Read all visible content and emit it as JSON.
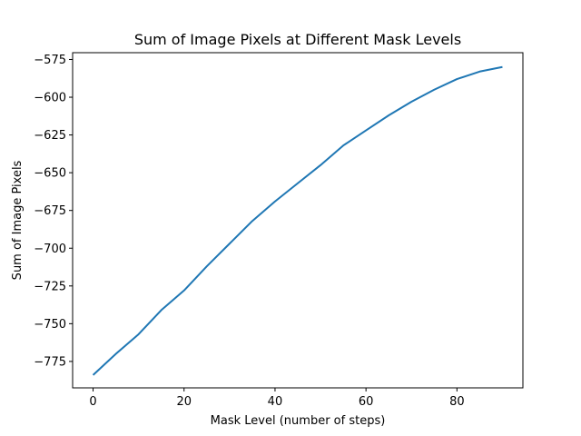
{
  "chart_data": {
    "type": "line",
    "title": "Sum of Image Pixels at Different Mask Levels",
    "xlabel": "Mask Level (number of steps)",
    "ylabel": "Sum of Image Pixels",
    "xlim": [
      -4.5,
      94.5
    ],
    "ylim": [
      -792.5,
      -570.5
    ],
    "x_ticks": [
      0,
      20,
      40,
      60,
      80
    ],
    "x_tick_labels": [
      "0",
      "20",
      "40",
      "60",
      "80"
    ],
    "y_ticks": [
      -575,
      -600,
      -625,
      -650,
      -675,
      -700,
      -725,
      -750,
      -775
    ],
    "y_tick_labels": [
      "−575",
      "−600",
      "−625",
      "−650",
      "−675",
      "−700",
      "−725",
      "−750",
      "−775"
    ],
    "grid": false,
    "series": [
      {
        "color": "#1f77b4",
        "x": [
          0,
          5,
          10,
          15,
          20,
          25,
          30,
          35,
          40,
          45,
          50,
          55,
          60,
          65,
          70,
          75,
          80,
          85,
          90
        ],
        "y": [
          -784,
          -770,
          -757,
          -741,
          -728,
          -712,
          -697,
          -682,
          -669,
          -657,
          -645,
          -632,
          -622,
          -612,
          -603,
          -595,
          -588,
          -583,
          -580
        ]
      }
    ]
  }
}
